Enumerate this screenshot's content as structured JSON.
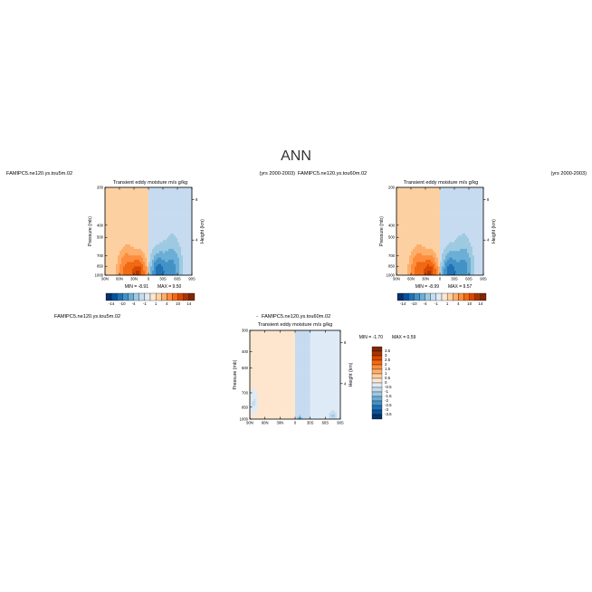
{
  "figure": {
    "main_title": "ANN"
  },
  "palettes": {
    "main": [
      "#08306b",
      "#08519c",
      "#2171b5",
      "#4292c6",
      "#6baed6",
      "#9ecae1",
      "#c6dbef",
      "#deebf7",
      "#fee6ce",
      "#fdd0a2",
      "#fdae6b",
      "#fd8d3c",
      "#f16913",
      "#d94801",
      "#a63603",
      "#7f2704"
    ],
    "diff": [
      "#08306b",
      "#08519c",
      "#2171b5",
      "#4292c6",
      "#6baed6",
      "#9ecae1",
      "#c6dbef",
      "#deebf7",
      "#fee6ce",
      "#fdd0a2",
      "#fdae6b",
      "#fd8d3c",
      "#f16913",
      "#d94801",
      "#a63603",
      "#7f2704"
    ]
  },
  "chart_data": [
    {
      "type": "heatmap",
      "case_label": "FAMIPC5.ne120.ys.tou5m.02",
      "title": "Transient eddy moisture m/s g/kg",
      "years_label": "(yrs 2000-2003)",
      "ylabel": "Pressure (mb)",
      "ylabel_right": "Height (km)",
      "xlim": [
        -90,
        90
      ],
      "ylim": [
        1000,
        200
      ],
      "x_ticks": [
        "90N",
        "60N",
        "30N",
        "0",
        "30S",
        "60S",
        "90S"
      ],
      "y_ticks": [
        "200",
        "400",
        "500",
        "700",
        "850",
        "1000"
      ],
      "y_ticks_right": [
        "8",
        "4"
      ],
      "colorbar_labels": [
        "-14",
        "-10",
        "-4",
        "-1",
        "1",
        "4",
        "10",
        "14"
      ],
      "min_label": "MIN =",
      "min_value": "-8.91",
      "max_label": "MAX =",
      "max_value": "9.50",
      "features": [
        {
          "lat": -22,
          "p": 960,
          "amp": 9.5,
          "sx": 13,
          "sy": 190
        },
        {
          "lat": -45,
          "p": 930,
          "amp": 4.5,
          "sx": 14,
          "sy": 230
        },
        {
          "lat": 22,
          "p": 950,
          "amp": -8.9,
          "sx": 13,
          "sy": 210
        },
        {
          "lat": 48,
          "p": 900,
          "amp": -4.5,
          "sx": 15,
          "sy": 260
        }
      ]
    },
    {
      "type": "heatmap",
      "case_label": "FAMIPC5.ne120.ys.tou60m.02",
      "title": "Transient eddy moisture m/s g/kg",
      "years_label": "(yrs 2000-2003)",
      "ylabel": "Pressure (mb)",
      "ylabel_right": "Height (km)",
      "xlim": [
        -90,
        90
      ],
      "ylim": [
        1000,
        200
      ],
      "x_ticks": [
        "90N",
        "60N",
        "30N",
        "0",
        "30S",
        "60S",
        "90S"
      ],
      "y_ticks": [
        "200",
        "400",
        "500",
        "700",
        "850",
        "1000"
      ],
      "y_ticks_right": [
        "8",
        "4"
      ],
      "colorbar_labels": [
        "-14",
        "-10",
        "-4",
        "-1",
        "1",
        "4",
        "10",
        "14"
      ],
      "min_label": "MIN =",
      "min_value": "-8.99",
      "max_label": "MAX =",
      "max_value": "9.57",
      "features": [
        {
          "lat": -22,
          "p": 960,
          "amp": 9.6,
          "sx": 13,
          "sy": 190
        },
        {
          "lat": -45,
          "p": 930,
          "amp": 4.6,
          "sx": 14,
          "sy": 230
        },
        {
          "lat": 22,
          "p": 950,
          "amp": -9.0,
          "sx": 13,
          "sy": 210
        },
        {
          "lat": 48,
          "p": 900,
          "amp": -4.6,
          "sx": 15,
          "sy": 260
        }
      ]
    },
    {
      "type": "heatmap",
      "case_label": "FAMIPC5.ne120.ys.tou5m.02",
      "title_prefix": "-",
      "case_label_b": "FAMIPC5.ne120.ys.tou60m.02",
      "title": "Transient eddy moisture m/s g/kg",
      "ylabel": "Pressure (mb)",
      "ylabel_right": "Height (km)",
      "xlim": [
        -90,
        90
      ],
      "ylim": [
        1000,
        300
      ],
      "x_ticks": [
        "90N",
        "60N",
        "30N",
        "0",
        "30S",
        "60S",
        "90S"
      ],
      "y_ticks": [
        "300",
        "400",
        "500",
        "700",
        "850",
        "1000"
      ],
      "y_ticks_right": [
        "8",
        "4"
      ],
      "colorbar_labels": [
        "3.5",
        "3",
        "2.5",
        "2",
        "1.5",
        "1",
        "0.5",
        "0",
        "-0.5",
        "-1",
        "-1.5",
        "-2",
        "-2.5",
        "-3",
        "-3.5"
      ],
      "min_label": "MIN =",
      "min_value": "-1.70",
      "max_label": "MAX =",
      "max_value": "0.59",
      "features": [
        {
          "lat": 10,
          "p": 990,
          "amp": -1.7,
          "sx": 4,
          "sy": 40
        },
        {
          "lat": 75,
          "p": 960,
          "amp": -0.9,
          "sx": 6,
          "sy": 70
        },
        {
          "lat": -82,
          "p": 800,
          "amp": -0.8,
          "sx": 6,
          "sy": 110
        }
      ]
    }
  ]
}
